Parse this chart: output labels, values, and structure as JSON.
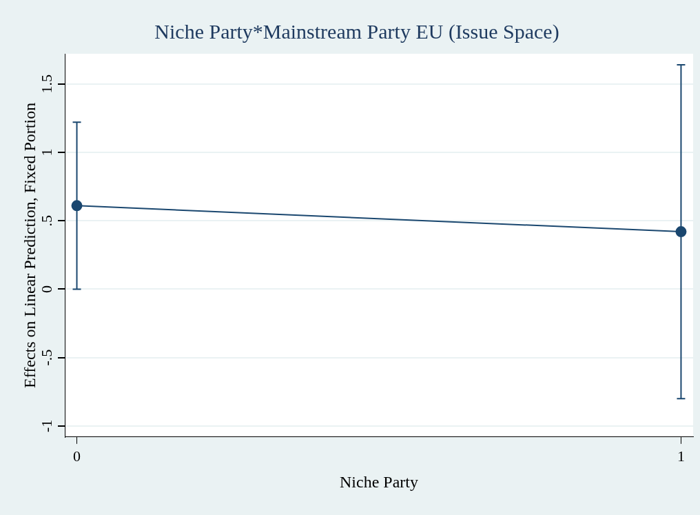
{
  "chart_data": {
    "type": "line",
    "title": "Niche Party*Mainstream Party EU (Issue Space)",
    "xlabel": "Niche Party",
    "ylabel": "Effects on Linear Prediction, Fixed Portion",
    "x": [
      0,
      1
    ],
    "series": [
      {
        "color": "#1a476f",
        "values": [
          0.61,
          0.42
        ],
        "errors": [
          [
            0.0,
            1.22
          ],
          [
            -0.8,
            1.64
          ]
        ]
      }
    ],
    "xlim": [
      -0.02,
      1.02
    ],
    "xticks": [
      0,
      1
    ],
    "ylim": [
      -1.08,
      1.72
    ],
    "yticks": [
      {
        "value": -1,
        "label": "-1"
      },
      {
        "value": -0.5,
        "label": "-.5"
      },
      0,
      {
        "value": 0.5,
        "label": ".5"
      },
      1,
      {
        "value": 1.5,
        "label": "1.5"
      }
    ],
    "grid": "y",
    "legend": false,
    "marker": "circle",
    "line_style": "solid"
  }
}
